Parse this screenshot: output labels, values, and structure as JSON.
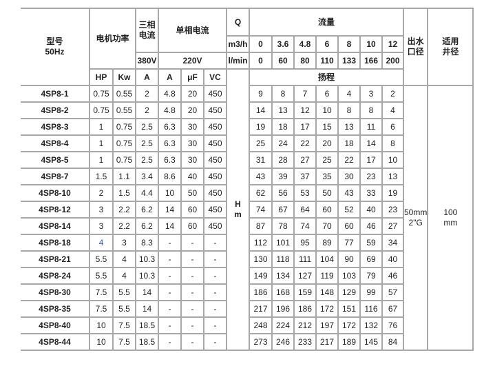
{
  "header": {
    "model": "型号",
    "freq": "50Hz",
    "motor_power": "电机功率",
    "three_phase_current_1": "三相",
    "three_phase_current_2": "电流",
    "single_phase_current": "单相电流",
    "q": "Q",
    "flow": "流量",
    "outlet_1": "出水",
    "outlet_2": "口径",
    "well_1": "适用",
    "well_2": "井径",
    "unit_m3h": "m3/h",
    "flow_m3h": [
      "0",
      "3.6",
      "4.8",
      "6",
      "8",
      "10",
      "12"
    ],
    "voltage_380": "380V",
    "voltage_220": "220V",
    "unit_lmin": "l/min",
    "flow_lmin": [
      "0",
      "60",
      "80",
      "110",
      "133",
      "166",
      "200"
    ],
    "sub_cols": [
      "HP",
      "Kw",
      "A",
      "A",
      "μF",
      "VC"
    ],
    "head": "扬程",
    "head_unit_1": "H",
    "head_unit_2": "m"
  },
  "outlet_value_1": "50mm",
  "outlet_value_2": "2\"G",
  "well_value_1": "100",
  "well_value_2": "mm",
  "highlight_color": "#3355cc",
  "rows": [
    {
      "model": "4SP8-1",
      "specs": [
        "0.75",
        "0.55",
        "2",
        "4.8",
        "20",
        "450"
      ],
      "heads": [
        "9",
        "8",
        "7",
        "6",
        "4",
        "3",
        "2"
      ]
    },
    {
      "model": "4SP8-2",
      "specs": [
        "0.75",
        "0.55",
        "2",
        "4.8",
        "20",
        "450"
      ],
      "heads": [
        "14",
        "13",
        "12",
        "10",
        "8",
        "8",
        "4"
      ]
    },
    {
      "model": "4SP8-3",
      "specs": [
        "1",
        "0.75",
        "2.5",
        "6.3",
        "30",
        "450"
      ],
      "heads": [
        "19",
        "18",
        "17",
        "15",
        "13",
        "11",
        "6"
      ]
    },
    {
      "model": "4SP8-4",
      "specs": [
        "1",
        "0.75",
        "2.5",
        "6.3",
        "30",
        "450"
      ],
      "heads": [
        "25",
        "24",
        "22",
        "20",
        "18",
        "14",
        "8"
      ]
    },
    {
      "model": "4SP8-5",
      "specs": [
        "1",
        "0.75",
        "2.5",
        "6.3",
        "30",
        "450"
      ],
      "heads": [
        "31",
        "28",
        "27",
        "25",
        "22",
        "17",
        "10"
      ]
    },
    {
      "model": "4SP8-7",
      "specs": [
        "1.5",
        "1.1",
        "3.4",
        "8.6",
        "40",
        "450"
      ],
      "heads": [
        "43",
        "39",
        "37",
        "35",
        "30",
        "23",
        "13"
      ]
    },
    {
      "model": "4SP8-10",
      "specs": [
        "2",
        "1.5",
        "4.4",
        "10",
        "50",
        "450"
      ],
      "heads": [
        "62",
        "56",
        "53",
        "50",
        "43",
        "33",
        "19"
      ]
    },
    {
      "model": "4SP8-12",
      "specs": [
        "3",
        "2.2",
        "6.2",
        "14",
        "60",
        "450"
      ],
      "heads": [
        "74",
        "67",
        "64",
        "60",
        "52",
        "40",
        "23"
      ]
    },
    {
      "model": "4SP8-14",
      "specs": [
        "3",
        "2.2",
        "6.2",
        "14",
        "60",
        "450"
      ],
      "heads": [
        "87",
        "78",
        "74",
        "70",
        "60",
        "46",
        "27"
      ]
    },
    {
      "model": "4SP8-18",
      "specs": [
        "4",
        "3",
        "8.3",
        "-",
        "-",
        "-"
      ],
      "heads": [
        "112",
        "101",
        "95",
        "89",
        "77",
        "59",
        "34"
      ]
    },
    {
      "model": "4SP8-21",
      "specs": [
        "5.5",
        "4",
        "10.3",
        "-",
        "-",
        "-"
      ],
      "heads": [
        "130",
        "118",
        "111",
        "104",
        "90",
        "69",
        "40"
      ]
    },
    {
      "model": "4SP8-24",
      "specs": [
        "5.5",
        "4",
        "10.3",
        "-",
        "-",
        "-"
      ],
      "heads": [
        "149",
        "134",
        "127",
        "119",
        "103",
        "79",
        "46"
      ]
    },
    {
      "model": "4SP8-30",
      "specs": [
        "7.5",
        "5.5",
        "14",
        "-",
        "-",
        "-"
      ],
      "heads": [
        "186",
        "168",
        "159",
        "148",
        "129",
        "99",
        "57"
      ]
    },
    {
      "model": "4SP8-35",
      "specs": [
        "7.5",
        "5.5",
        "14",
        "-",
        "-",
        "-"
      ],
      "heads": [
        "217",
        "196",
        "186",
        "172",
        "151",
        "116",
        "67"
      ]
    },
    {
      "model": "4SP8-40",
      "specs": [
        "10",
        "7.5",
        "18.5",
        "-",
        "-",
        "-"
      ],
      "heads": [
        "248",
        "224",
        "212",
        "197",
        "172",
        "132",
        "76"
      ]
    },
    {
      "model": "4SP8-44",
      "specs": [
        "10",
        "7.5",
        "18.5",
        "-",
        "-",
        "-"
      ],
      "heads": [
        "273",
        "246",
        "233",
        "217",
        "189",
        "145",
        "84"
      ]
    }
  ]
}
